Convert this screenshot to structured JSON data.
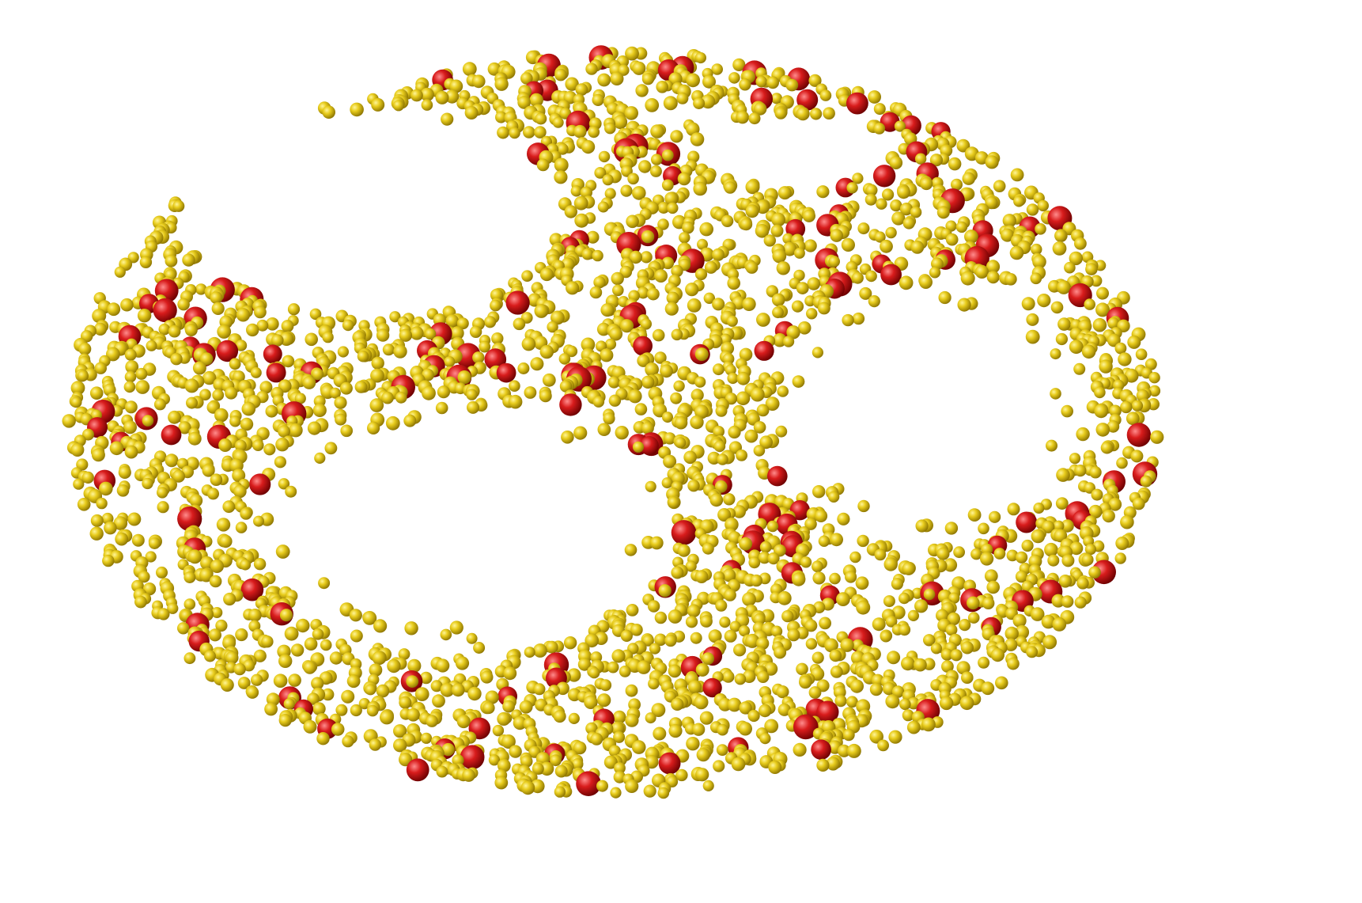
{
  "scene": {
    "kind": "3d-particle-render",
    "background": "#ffffff",
    "particle_types": [
      {
        "name": "small-particle",
        "color": "#e8cc1c",
        "highlight": "#fff59a",
        "shadow": "#8a7200"
      },
      {
        "name": "large-particle",
        "color": "#d81c1c",
        "highlight": "#ff8c8c",
        "shadow": "#6a0000"
      }
    ]
  }
}
